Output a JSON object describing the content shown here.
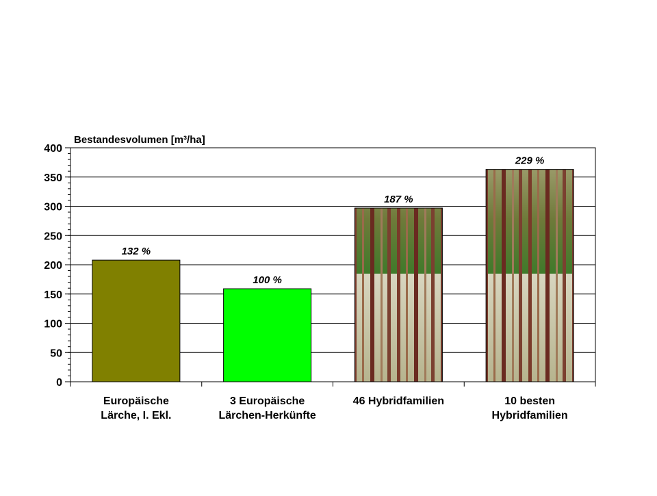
{
  "chart_data": {
    "type": "bar",
    "y_label": "Bestandesvolumen [m³/ha]",
    "categories": [
      "Europäische\nLärche, I. Ekl.",
      "3 Europäische\nLärchen-Herkünfte",
      "46 Hybridfamilien",
      "10 besten\nHybridfamilien"
    ],
    "values": [
      208,
      159,
      297,
      363
    ],
    "annotations": [
      "132 %",
      "100 %",
      "187 %",
      "229 %"
    ],
    "colors": [
      "#808000",
      "#00ff00",
      "#8a6a40",
      "#8a6a40"
    ],
    "pattern": [
      null,
      null,
      "forest",
      "forest"
    ],
    "ylim": [
      0,
      400
    ],
    "yticks": [
      0,
      50,
      100,
      150,
      200,
      250,
      300,
      350,
      400
    ],
    "minor_step": 10,
    "grid": true
  }
}
